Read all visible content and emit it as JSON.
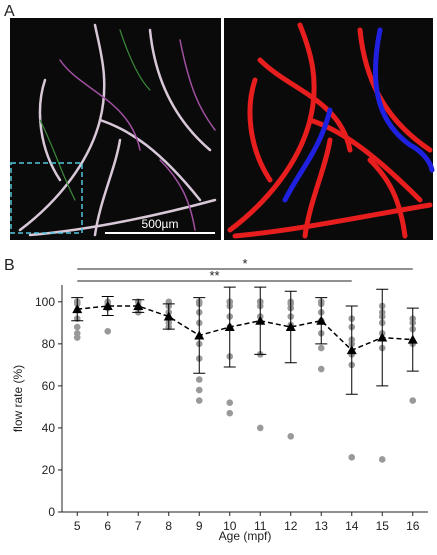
{
  "panel_labels": [
    "A",
    "B"
  ],
  "scale_bar": "500µm",
  "chart_data": {
    "type": "scatter",
    "xlabel": "Age (mpf)",
    "ylabel": "flow rate (%)",
    "x": [
      5,
      6,
      7,
      8,
      9,
      10,
      11,
      12,
      13,
      14,
      15,
      16
    ],
    "xlim": [
      4.5,
      16.5
    ],
    "xticks": [
      5,
      6,
      7,
      8,
      9,
      10,
      11,
      12,
      13,
      14,
      15,
      16
    ],
    "ylim": [
      0,
      108
    ],
    "yticks": [
      0,
      20,
      40,
      60,
      80,
      100
    ],
    "mean": {
      "values": [
        96.5,
        98,
        98,
        93,
        84,
        88,
        91,
        88,
        91,
        77,
        83,
        82
      ],
      "errors": [
        5.5,
        4.5,
        3,
        6,
        18,
        19,
        16,
        17,
        11,
        21,
        23,
        15
      ],
      "color": "#000000"
    },
    "points": {
      "color": "#999999",
      "x": [
        5,
        5,
        5,
        5,
        5,
        5,
        5,
        5,
        5,
        5,
        6,
        6,
        6,
        6,
        6,
        7,
        7,
        7,
        7,
        8,
        8,
        8,
        8,
        8,
        9,
        9,
        9,
        9,
        9,
        9,
        9,
        9,
        9,
        9,
        9,
        10,
        10,
        10,
        10,
        10,
        10,
        10,
        10,
        10,
        11,
        11,
        11,
        11,
        11,
        11,
        11,
        11,
        12,
        12,
        12,
        12,
        12,
        12,
        13,
        13,
        13,
        13,
        13,
        13,
        13,
        13,
        14,
        14,
        14,
        14,
        14,
        14,
        14,
        15,
        15,
        15,
        15,
        15,
        15,
        15,
        16,
        16,
        16,
        16,
        16
      ],
      "values": [
        100,
        100,
        100,
        100,
        99,
        96,
        92,
        88,
        85,
        83,
        100,
        100,
        99,
        97,
        86,
        100,
        100,
        98,
        95,
        100,
        98,
        95,
        90,
        88,
        100,
        100,
        100,
        99,
        95,
        90,
        80,
        73,
        63,
        58,
        53,
        100,
        100,
        100,
        98,
        93,
        88,
        74,
        52,
        47,
        100,
        100,
        100,
        100,
        98,
        93,
        75,
        40,
        100,
        99,
        97,
        93,
        89,
        36,
        100,
        100,
        99,
        95,
        91,
        85,
        78,
        68,
        92,
        88,
        82,
        80,
        75,
        70,
        26,
        98,
        95,
        93,
        90,
        85,
        78,
        25,
        92,
        90,
        87,
        80,
        53
      ]
    },
    "comparisons": [
      {
        "label": "*",
        "from": 5,
        "to": 16
      },
      {
        "label": "**",
        "from": 5,
        "to": 14
      }
    ]
  }
}
